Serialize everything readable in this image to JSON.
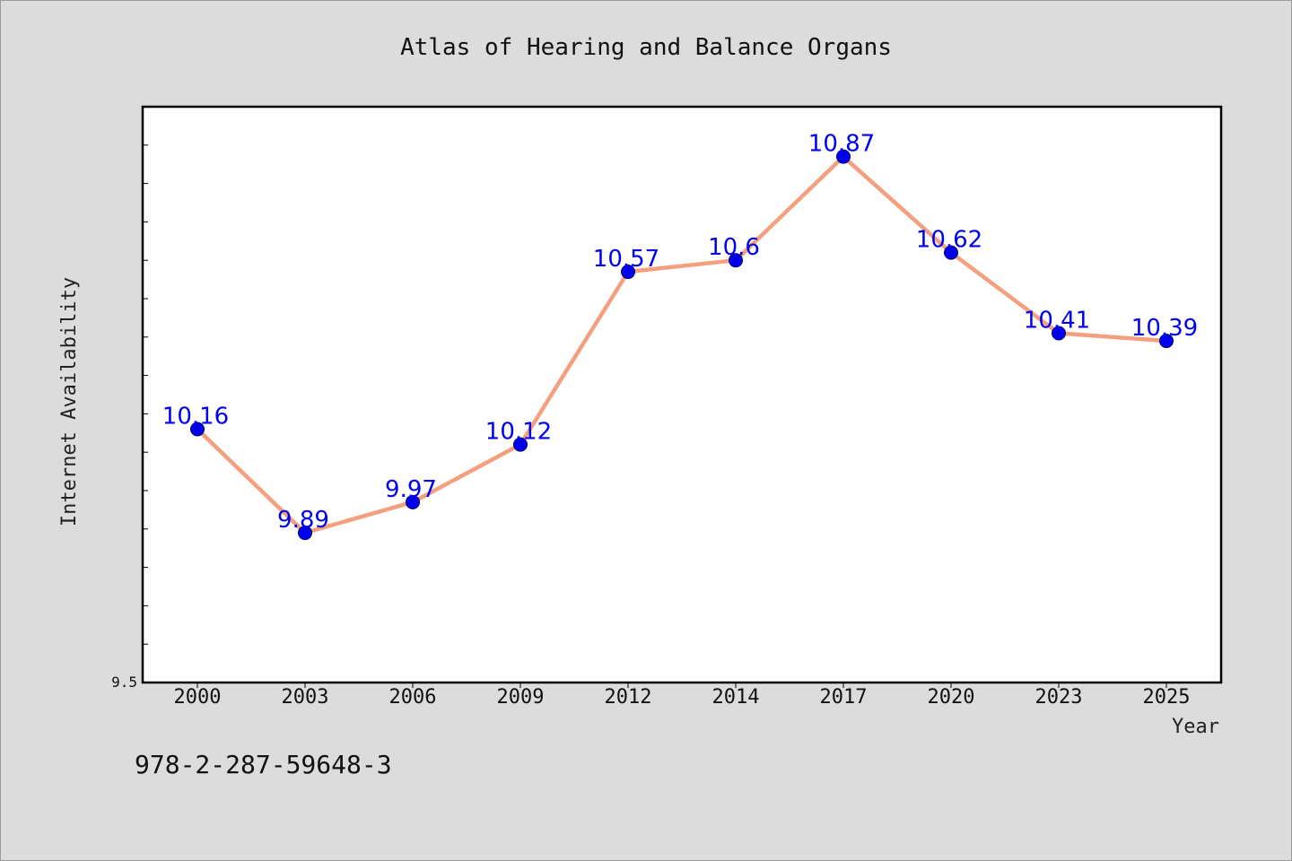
{
  "chart_data": {
    "type": "line",
    "title": "Atlas of Hearing and Balance Organs",
    "xlabel": "Year",
    "ylabel": "Internet Availability",
    "categories": [
      "2000",
      "2003",
      "2006",
      "2009",
      "2012",
      "2014",
      "2017",
      "2020",
      "2023",
      "2025"
    ],
    "series": [
      {
        "values": [
          10.16,
          9.89,
          9.97,
          10.12,
          10.57,
          10.6,
          10.87,
          10.62,
          10.41,
          10.39
        ],
        "labels": [
          "10.16",
          "9.89",
          "9.97",
          "10.12",
          "10.57",
          "10.6",
          "10.87",
          "10.62",
          "10.41",
          "10.39"
        ]
      }
    ],
    "ylim": [
      9.5,
      11.0
    ],
    "y_tick_labels": [
      "9.5"
    ],
    "grid": false,
    "line_color": "#f4a07e",
    "marker_color": "#0000ee",
    "label_color": "#0000ee"
  },
  "footer": {
    "isbn": "978-2-287-59648-3"
  }
}
